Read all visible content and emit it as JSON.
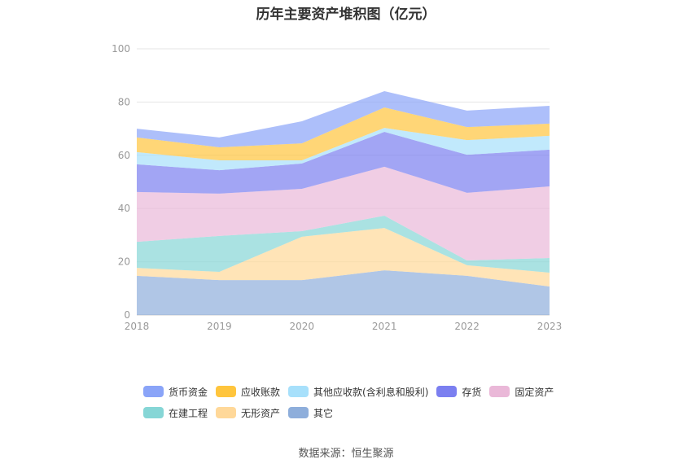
{
  "title": "历年主要资产堆积图（亿元）",
  "source": "数据来源：恒生聚源",
  "chart_data": {
    "type": "area",
    "stacked": true,
    "title": "历年主要资产堆积图（亿元）",
    "categories": [
      "2018",
      "2019",
      "2020",
      "2021",
      "2022",
      "2023"
    ],
    "ylim": [
      0,
      100
    ],
    "yticks": [
      0,
      20,
      40,
      60,
      80,
      100
    ],
    "grid": true,
    "legend": "bottom",
    "series": [
      {
        "name": "货币资金",
        "color": "#8aa4f8",
        "values": [
          3.3,
          3.7,
          8.3,
          6.1,
          6.2,
          6.7
        ]
      },
      {
        "name": "应收账款",
        "color": "#ffc53d",
        "values": [
          5.5,
          4.9,
          6.4,
          7.7,
          4.9,
          4.6
        ]
      },
      {
        "name": "其他应收款(含利息和股利)",
        "color": "#a7e0fb",
        "values": [
          4.6,
          3.7,
          1.2,
          1.5,
          5.5,
          5.2
        ]
      },
      {
        "name": "存货",
        "color": "#7b7ff0",
        "values": [
          10.4,
          8.8,
          9.5,
          13.1,
          14.3,
          13.8
        ]
      },
      {
        "name": "固定资产",
        "color": "#eab8d8",
        "values": [
          18.7,
          15.9,
          15.9,
          18.4,
          25.4,
          26.9
        ]
      },
      {
        "name": "在建工程",
        "color": "#86d6d6",
        "values": [
          9.8,
          13.5,
          2.1,
          4.6,
          1.8,
          5.5
        ]
      },
      {
        "name": "无形资产",
        "color": "#ffd899",
        "values": [
          3.0,
          3.1,
          16.3,
          15.9,
          4.0,
          5.2
        ]
      },
      {
        "name": "其它",
        "color": "#8eaedb",
        "values": [
          14.7,
          13.1,
          13.1,
          16.8,
          14.7,
          10.7
        ]
      }
    ]
  }
}
